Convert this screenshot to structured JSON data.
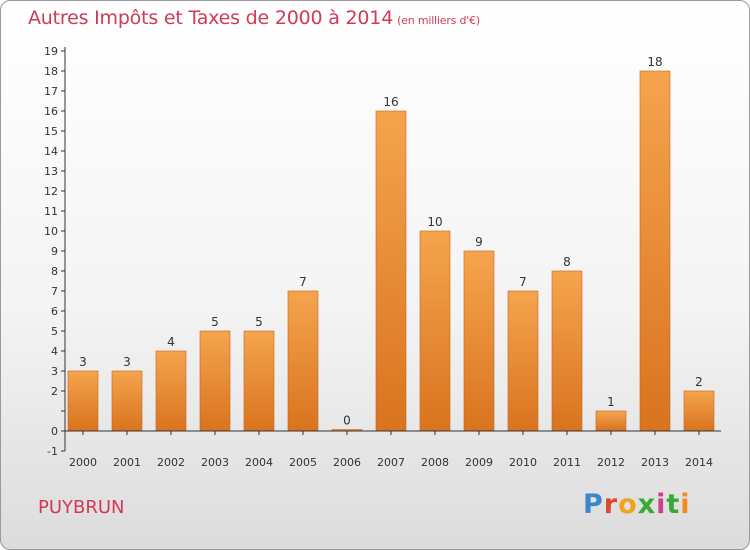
{
  "header": {
    "title": "Autres Impôts et Taxes de 2000 à 2014",
    "unit_note": "(en milliers d'€)"
  },
  "footer": {
    "place": "PUYBRUN",
    "logo_text": "Proxiti"
  },
  "colors": {
    "title": "#d13a57",
    "bar_light": "#f5a44e",
    "bar_dark": "#d9731f",
    "bar_edge": "#c86616",
    "axis": "#333333"
  },
  "chart_data": {
    "type": "bar",
    "categories": [
      "2000",
      "2001",
      "2002",
      "2003",
      "2004",
      "2005",
      "2006",
      "2007",
      "2008",
      "2009",
      "2010",
      "2011",
      "2012",
      "2013",
      "2014"
    ],
    "values": [
      3,
      3,
      4,
      5,
      5,
      7,
      0,
      16,
      10,
      9,
      7,
      8,
      1,
      18,
      2
    ],
    "data_labels": [
      "3",
      "3",
      "4",
      "5",
      "5",
      "7",
      "0",
      "16",
      "10",
      "9",
      "7",
      "8",
      "1",
      "18",
      "2"
    ],
    "y_ticks": [
      -1,
      0,
      1,
      2,
      3,
      4,
      5,
      6,
      7,
      8,
      9,
      10,
      11,
      12,
      13,
      14,
      15,
      16,
      17,
      18,
      19
    ],
    "y_tick_labels": [
      "-1",
      "0",
      "",
      "2",
      "3",
      "4",
      "5",
      "6",
      "7",
      "8",
      "9",
      "10",
      "11",
      "12",
      "13",
      "14",
      "15",
      "16",
      "17",
      "18",
      "19"
    ],
    "ylim": [
      -1,
      19
    ],
    "title": "Autres Impôts et Taxes de 2000 à 2014",
    "xlabel": "",
    "ylabel": "",
    "grid": false,
    "legend": "none"
  }
}
